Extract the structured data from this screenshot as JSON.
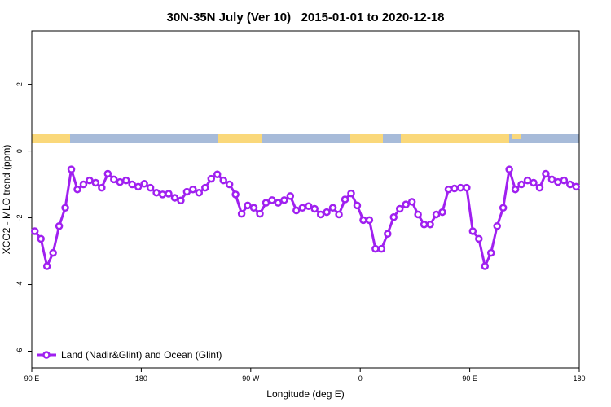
{
  "chart_data": {
    "type": "line",
    "title": "30N-35N July (Ver 10)   2015-01-01 to 2020-12-18",
    "x_label": "Longitude (deg E)",
    "y_label": "XCO2 - MLO trend (ppm)",
    "xlim": [
      90,
      540
    ],
    "xticks": [
      {
        "value": 90,
        "label": "90 E"
      },
      180,
      {
        "value": 270,
        "label": "90 W"
      },
      {
        "value": 360,
        "label": "0"
      },
      {
        "value": 450,
        "label": "90 E"
      },
      {
        "value": 540,
        "label": "180"
      }
    ],
    "ylim": [
      -6.5,
      3.6
    ],
    "yticks": [
      -6,
      -4,
      -2,
      0,
      2
    ],
    "legend": "bottom-left",
    "x": [
      92.5,
      97.5,
      102.5,
      107.5,
      112.5,
      117.5,
      122.5,
      127.5,
      132.5,
      137.5,
      142.5,
      147.5,
      152.5,
      157.5,
      162.5,
      167.5,
      172.5,
      177.5,
      182.5,
      187.5,
      192.5,
      197.5,
      202.5,
      207.5,
      212.5,
      217.5,
      222.5,
      227.5,
      232.5,
      237.5,
      242.5,
      247.5,
      252.5,
      257.5,
      262.5,
      267.5,
      272.5,
      277.5,
      282.5,
      287.5,
      292.5,
      297.5,
      302.5,
      307.5,
      312.5,
      317.5,
      322.5,
      327.5,
      332.5,
      337.5,
      342.5,
      347.5,
      352.5,
      357.5,
      362.5,
      367.5,
      372.5,
      377.5,
      382.5,
      387.5,
      392.5,
      397.5,
      402.5,
      407.5,
      412.5,
      417.5,
      422.5,
      427.5,
      432.5,
      437.5,
      442.5,
      447.5,
      452.5,
      457.5,
      462.5,
      467.5,
      472.5,
      477.5,
      482.5,
      487.5,
      492.5,
      497.5,
      502.5,
      507.5,
      512.5,
      517.5,
      522.5,
      527.5,
      532.5,
      537.5
    ],
    "series": [
      {
        "name": "Land (Nadir&Glint) and Ocean (Glint)",
        "color": "#a020f0",
        "values": [
          -2.4,
          -2.63,
          -3.45,
          -3.05,
          -2.25,
          -1.7,
          -0.55,
          -1.15,
          -1.0,
          -0.88,
          -0.95,
          -1.1,
          -0.68,
          -0.85,
          -0.93,
          -0.88,
          -1.0,
          -1.07,
          -0.98,
          -1.1,
          -1.25,
          -1.3,
          -1.28,
          -1.4,
          -1.48,
          -1.22,
          -1.15,
          -1.25,
          -1.1,
          -0.83,
          -0.7,
          -0.88,
          -1.0,
          -1.3,
          -1.88,
          -1.63,
          -1.7,
          -1.88,
          -1.55,
          -1.47,
          -1.55,
          -1.47,
          -1.35,
          -1.78,
          -1.7,
          -1.65,
          -1.73,
          -1.9,
          -1.83,
          -1.7,
          -1.9,
          -1.45,
          -1.27,
          -1.63,
          -2.07,
          -2.07,
          -2.93,
          -2.93,
          -2.48,
          -1.98,
          -1.73,
          -1.6,
          -1.52,
          -1.9,
          -2.2,
          -2.2,
          -1.9,
          -1.83,
          -1.15,
          -1.12,
          -1.1,
          -1.1,
          -2.4,
          -2.63,
          -3.45,
          -3.05,
          -2.25,
          -1.7,
          -0.55,
          -1.15,
          -1.0,
          -0.88,
          -0.95,
          -1.1,
          -0.68,
          -0.85,
          -0.93,
          -0.88,
          -1.0,
          -1.07
        ]
      }
    ]
  }
}
